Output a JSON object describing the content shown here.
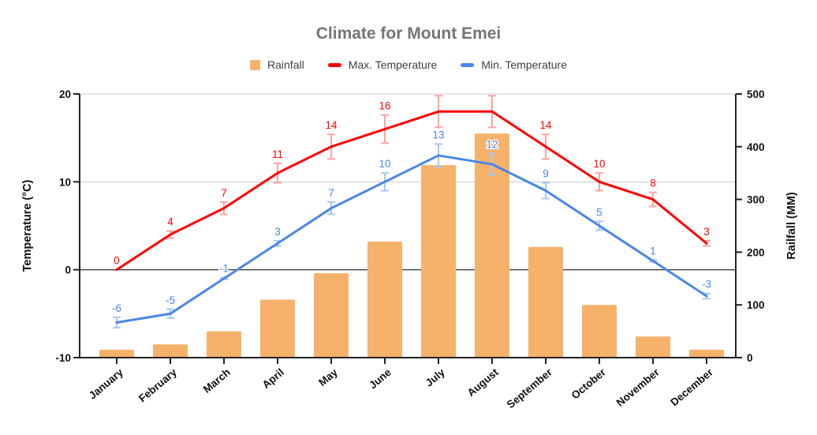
{
  "title": "Climate for Mount Emei",
  "legend": {
    "items": [
      {
        "label": "Rainfall",
        "color": "#F6B26B",
        "shape": "square"
      },
      {
        "label": "Max. Temperature",
        "color": "#FF0000",
        "shape": "dash"
      },
      {
        "label": "Min. Temperature",
        "color": "#4A86E8",
        "shape": "dash"
      }
    ]
  },
  "chart_data": {
    "type": "combo (bar + line)",
    "title": "Climate for Mount Emei",
    "categories": [
      "January",
      "February",
      "March",
      "April",
      "May",
      "June",
      "July",
      "August",
      "September",
      "October",
      "November",
      "December"
    ],
    "series": [
      {
        "name": "Rainfall",
        "type": "bar",
        "axis": "right",
        "color": "#F6B26B",
        "values": [
          15,
          25,
          50,
          110,
          160,
          220,
          365,
          425,
          210,
          100,
          40,
          15
        ]
      },
      {
        "name": "Max. Temperature",
        "type": "line",
        "axis": "left",
        "color": "#FF0000",
        "error_bar_color": "#FFA3A3",
        "values": [
          0,
          4,
          7,
          11,
          14,
          16,
          18,
          18,
          14,
          10,
          8,
          3
        ],
        "point_labels": [
          "0",
          "4",
          "7",
          "11",
          "14",
          "16",
          null,
          null,
          "14",
          "10",
          "8",
          "3"
        ]
      },
      {
        "name": "Min. Temperature",
        "type": "line",
        "axis": "left",
        "color": "#4A86E8",
        "error_bar_color": "#A8C6F5",
        "values": [
          -6,
          -5,
          -1,
          3,
          7,
          10,
          13,
          12,
          9,
          5,
          1,
          -3
        ],
        "point_labels": [
          "-6",
          "-5",
          "-1",
          "3",
          "7",
          "10",
          "13",
          "12",
          "9",
          "5",
          "1",
          "-3"
        ]
      }
    ],
    "error_bars": {
      "type": "percent",
      "value": 10
    },
    "axes": {
      "left": {
        "title": "Temperature (°C)",
        "min": -10,
        "max": 20,
        "ticks": [
          "20",
          "10",
          "0",
          "-10"
        ]
      },
      "right": {
        "title": "Railfall (MM)",
        "min": 0,
        "max": 500,
        "ticks": [
          "500",
          "400",
          "300",
          "200",
          "100",
          "0"
        ]
      }
    },
    "legend_position": "top",
    "grid": {
      "light_gridlines_at_temp": [
        20,
        10
      ],
      "dark_zero_line_at_temp": 0
    }
  },
  "colors": {
    "title_text": "#757575",
    "legend_text": "#3C4043",
    "axis_text": "#111111",
    "axis_line": "#222222",
    "gridline": "#CCCCCC",
    "zero_line": "#424242",
    "background": "#FFFFFF"
  }
}
